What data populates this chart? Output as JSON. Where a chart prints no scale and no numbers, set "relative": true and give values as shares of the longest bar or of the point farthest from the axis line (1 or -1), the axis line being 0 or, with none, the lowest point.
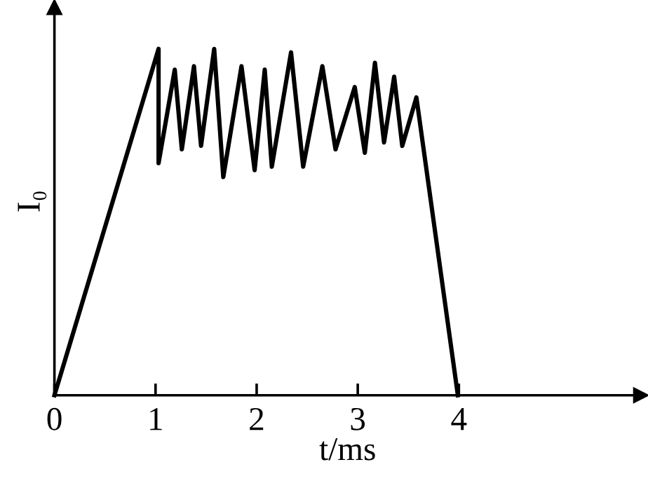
{
  "chart_data": {
    "type": "line",
    "relative": true,
    "xlabel": "t/ms",
    "ylabel": "I₀",
    "xlim": [
      0,
      5.8
    ],
    "xticks": [
      0,
      1,
      2,
      3,
      4
    ],
    "grid": false,
    "legend": false,
    "series": [
      {
        "color": "#000000",
        "x": [
          0,
          1.03,
          1.03,
          1.19,
          1.26,
          1.38,
          1.45,
          1.58,
          1.67,
          1.85,
          1.98,
          2.08,
          2.15,
          2.34,
          2.46,
          2.65,
          2.78,
          2.97,
          3.07,
          3.17,
          3.26,
          3.36,
          3.44,
          3.58,
          3.99
        ],
        "values": [
          0,
          1.0,
          0.67,
          0.94,
          0.71,
          0.95,
          0.72,
          1.0,
          0.63,
          0.95,
          0.65,
          0.94,
          0.66,
          0.99,
          0.66,
          0.95,
          0.71,
          0.89,
          0.7,
          0.96,
          0.73,
          0.92,
          0.72,
          0.86,
          0
        ]
      }
    ]
  }
}
